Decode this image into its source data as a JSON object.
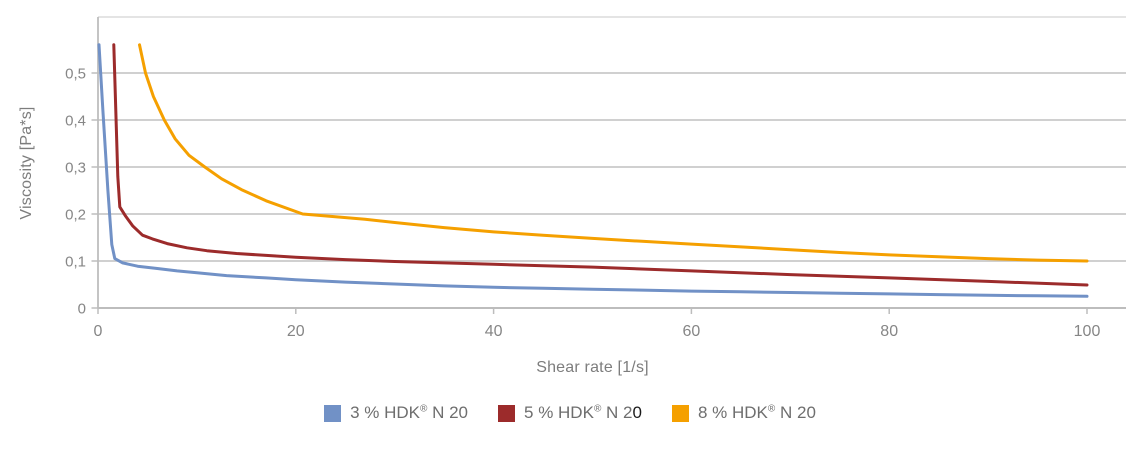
{
  "chart_data": {
    "type": "line",
    "title": "",
    "xlabel": "Shear rate [1/s]",
    "ylabel": "Viscosity [Pa*s]",
    "xlim": [
      0,
      104
    ],
    "ylim": [
      0,
      0.62
    ],
    "grid": "horizontal",
    "legend_position": "bottom-center",
    "x_ticks": [
      {
        "value": 0,
        "label": "0"
      },
      {
        "value": 20,
        "label": "20"
      },
      {
        "value": 40,
        "label": "40"
      },
      {
        "value": 60,
        "label": "60"
      },
      {
        "value": 80,
        "label": "80"
      },
      {
        "value": 100,
        "label": "100"
      }
    ],
    "y_ticks": [
      {
        "value": 0,
        "label": "0"
      },
      {
        "value": 0.1,
        "label": "0,1"
      },
      {
        "value": 0.2,
        "label": "0,2"
      },
      {
        "value": 0.3,
        "label": "0,3"
      },
      {
        "value": 0.4,
        "label": "0,4"
      },
      {
        "value": 0.5,
        "label": "0,5"
      }
    ],
    "series": [
      {
        "name": "3 % HDK® N 20",
        "color": "#7191C6",
        "points": [
          [
            0.1,
            0.56
          ],
          [
            0.5,
            0.42
          ],
          [
            1.0,
            0.25
          ],
          [
            1.4,
            0.135
          ],
          [
            1.7,
            0.105
          ],
          [
            2.5,
            0.096
          ],
          [
            4,
            0.089
          ],
          [
            6,
            0.084
          ],
          [
            8,
            0.079
          ],
          [
            10,
            0.075
          ],
          [
            13,
            0.069
          ],
          [
            17,
            0.064
          ],
          [
            20,
            0.06
          ],
          [
            25,
            0.055
          ],
          [
            30,
            0.051
          ],
          [
            35,
            0.047
          ],
          [
            40,
            0.044
          ],
          [
            45,
            0.042
          ],
          [
            50,
            0.04
          ],
          [
            55,
            0.038
          ],
          [
            60,
            0.036
          ],
          [
            65,
            0.0345
          ],
          [
            70,
            0.033
          ],
          [
            75,
            0.0315
          ],
          [
            80,
            0.03
          ],
          [
            85,
            0.0285
          ],
          [
            90,
            0.027
          ],
          [
            95,
            0.026
          ],
          [
            100,
            0.025
          ]
        ]
      },
      {
        "name": "5 % HDK® N 20",
        "color": "#9C2B2B",
        "points": [
          [
            1.6,
            0.56
          ],
          [
            1.8,
            0.42
          ],
          [
            2.0,
            0.28
          ],
          [
            2.2,
            0.215
          ],
          [
            2.8,
            0.195
          ],
          [
            3.5,
            0.175
          ],
          [
            4.5,
            0.155
          ],
          [
            5.5,
            0.147
          ],
          [
            7,
            0.137
          ],
          [
            9,
            0.128
          ],
          [
            11,
            0.122
          ],
          [
            14,
            0.116
          ],
          [
            17,
            0.112
          ],
          [
            20,
            0.108
          ],
          [
            25,
            0.103
          ],
          [
            30,
            0.099
          ],
          [
            35,
            0.096
          ],
          [
            40,
            0.093
          ],
          [
            50,
            0.087
          ],
          [
            60,
            0.079
          ],
          [
            70,
            0.071
          ],
          [
            80,
            0.064
          ],
          [
            90,
            0.0565
          ],
          [
            100,
            0.049
          ]
        ]
      },
      {
        "name": "8 % HDK® N 20",
        "color": "#F5A000",
        "points": [
          [
            4.2,
            0.56
          ],
          [
            4.8,
            0.5
          ],
          [
            5.6,
            0.45
          ],
          [
            6.7,
            0.4
          ],
          [
            7.8,
            0.36
          ],
          [
            9.2,
            0.325
          ],
          [
            10.8,
            0.3
          ],
          [
            12.5,
            0.275
          ],
          [
            14.5,
            0.252
          ],
          [
            17,
            0.228
          ],
          [
            20.7,
            0.2
          ],
          [
            24,
            0.194
          ],
          [
            27,
            0.189
          ],
          [
            30,
            0.182
          ],
          [
            35,
            0.171
          ],
          [
            40,
            0.162
          ],
          [
            45,
            0.155
          ],
          [
            50,
            0.148
          ],
          [
            55,
            0.142
          ],
          [
            60,
            0.136
          ],
          [
            65,
            0.13
          ],
          [
            70,
            0.124
          ],
          [
            75,
            0.118
          ],
          [
            80,
            0.113
          ],
          [
            85,
            0.109
          ],
          [
            90,
            0.105
          ],
          [
            95,
            0.102
          ],
          [
            100,
            0.1
          ]
        ]
      }
    ]
  },
  "legend": {
    "items": [
      {
        "pre": "3 % HDK",
        "reg": "®",
        "post": " N 20",
        "dark": ""
      },
      {
        "pre": "5 % HDK",
        "reg": "®",
        "post": " N 2",
        "dark": "0"
      },
      {
        "pre": "8 % HDK",
        "reg": "®",
        "post": " N 20",
        "dark": ""
      }
    ]
  }
}
